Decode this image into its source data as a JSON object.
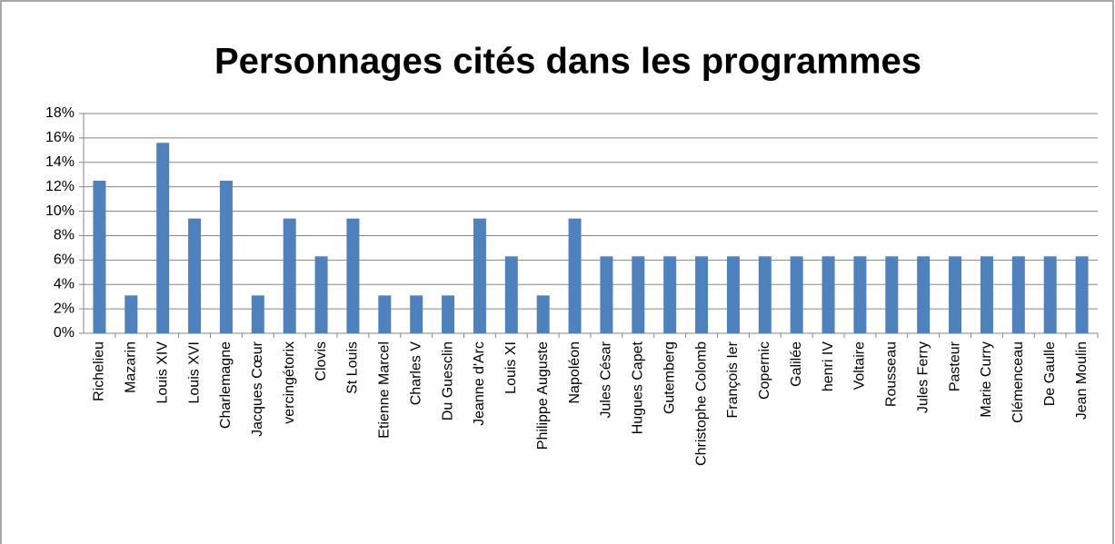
{
  "chart_data": {
    "type": "bar",
    "title": "Personnages cités dans les programmes",
    "categories": [
      "Richelieu",
      "Mazarin",
      "Louis XIV",
      "Louis XVI",
      "Charlemagne",
      "Jacques Cœur",
      "vercingétorix",
      "Clovis",
      "St Louis",
      "Etienne Marcel",
      "Charles V",
      "Du Guesclin",
      "Jeanne d'Arc",
      "Louis XI",
      "Philippe Auguste",
      "Napoléon",
      "Jules César",
      "Hugues Capet",
      "Gutemberg",
      "Christophe Colomb",
      "François Ier",
      "Copernic",
      "Galilée",
      "henri IV",
      "Voltaire",
      "Rousseau",
      "Jules Ferry",
      "Pasteur",
      "Marie Curry",
      "Clémenceau",
      "De Gaulle",
      "Jean Moulin"
    ],
    "values": [
      12.5,
      3.1,
      15.6,
      9.4,
      12.5,
      3.1,
      9.4,
      6.3,
      9.4,
      3.1,
      3.1,
      3.1,
      9.4,
      6.3,
      3.1,
      9.4,
      6.3,
      6.3,
      6.3,
      6.3,
      6.3,
      6.3,
      6.3,
      6.3,
      6.3,
      6.3,
      6.3,
      6.3,
      6.3,
      6.3,
      6.3,
      6.3
    ],
    "color": "#4f81bd",
    "ylim": [
      0,
      18
    ],
    "yticks": [
      {
        "value": 0,
        "label": "0%"
      },
      {
        "value": 2,
        "label": "2%"
      },
      {
        "value": 4,
        "label": "4%"
      },
      {
        "value": 6,
        "label": "6%"
      },
      {
        "value": 8,
        "label": "8%"
      },
      {
        "value": 10,
        "label": "10%"
      },
      {
        "value": 12,
        "label": "12%"
      },
      {
        "value": 14,
        "label": "14%"
      },
      {
        "value": 16,
        "label": "16%"
      },
      {
        "value": 18,
        "label": "18%"
      }
    ],
    "grid": true
  }
}
